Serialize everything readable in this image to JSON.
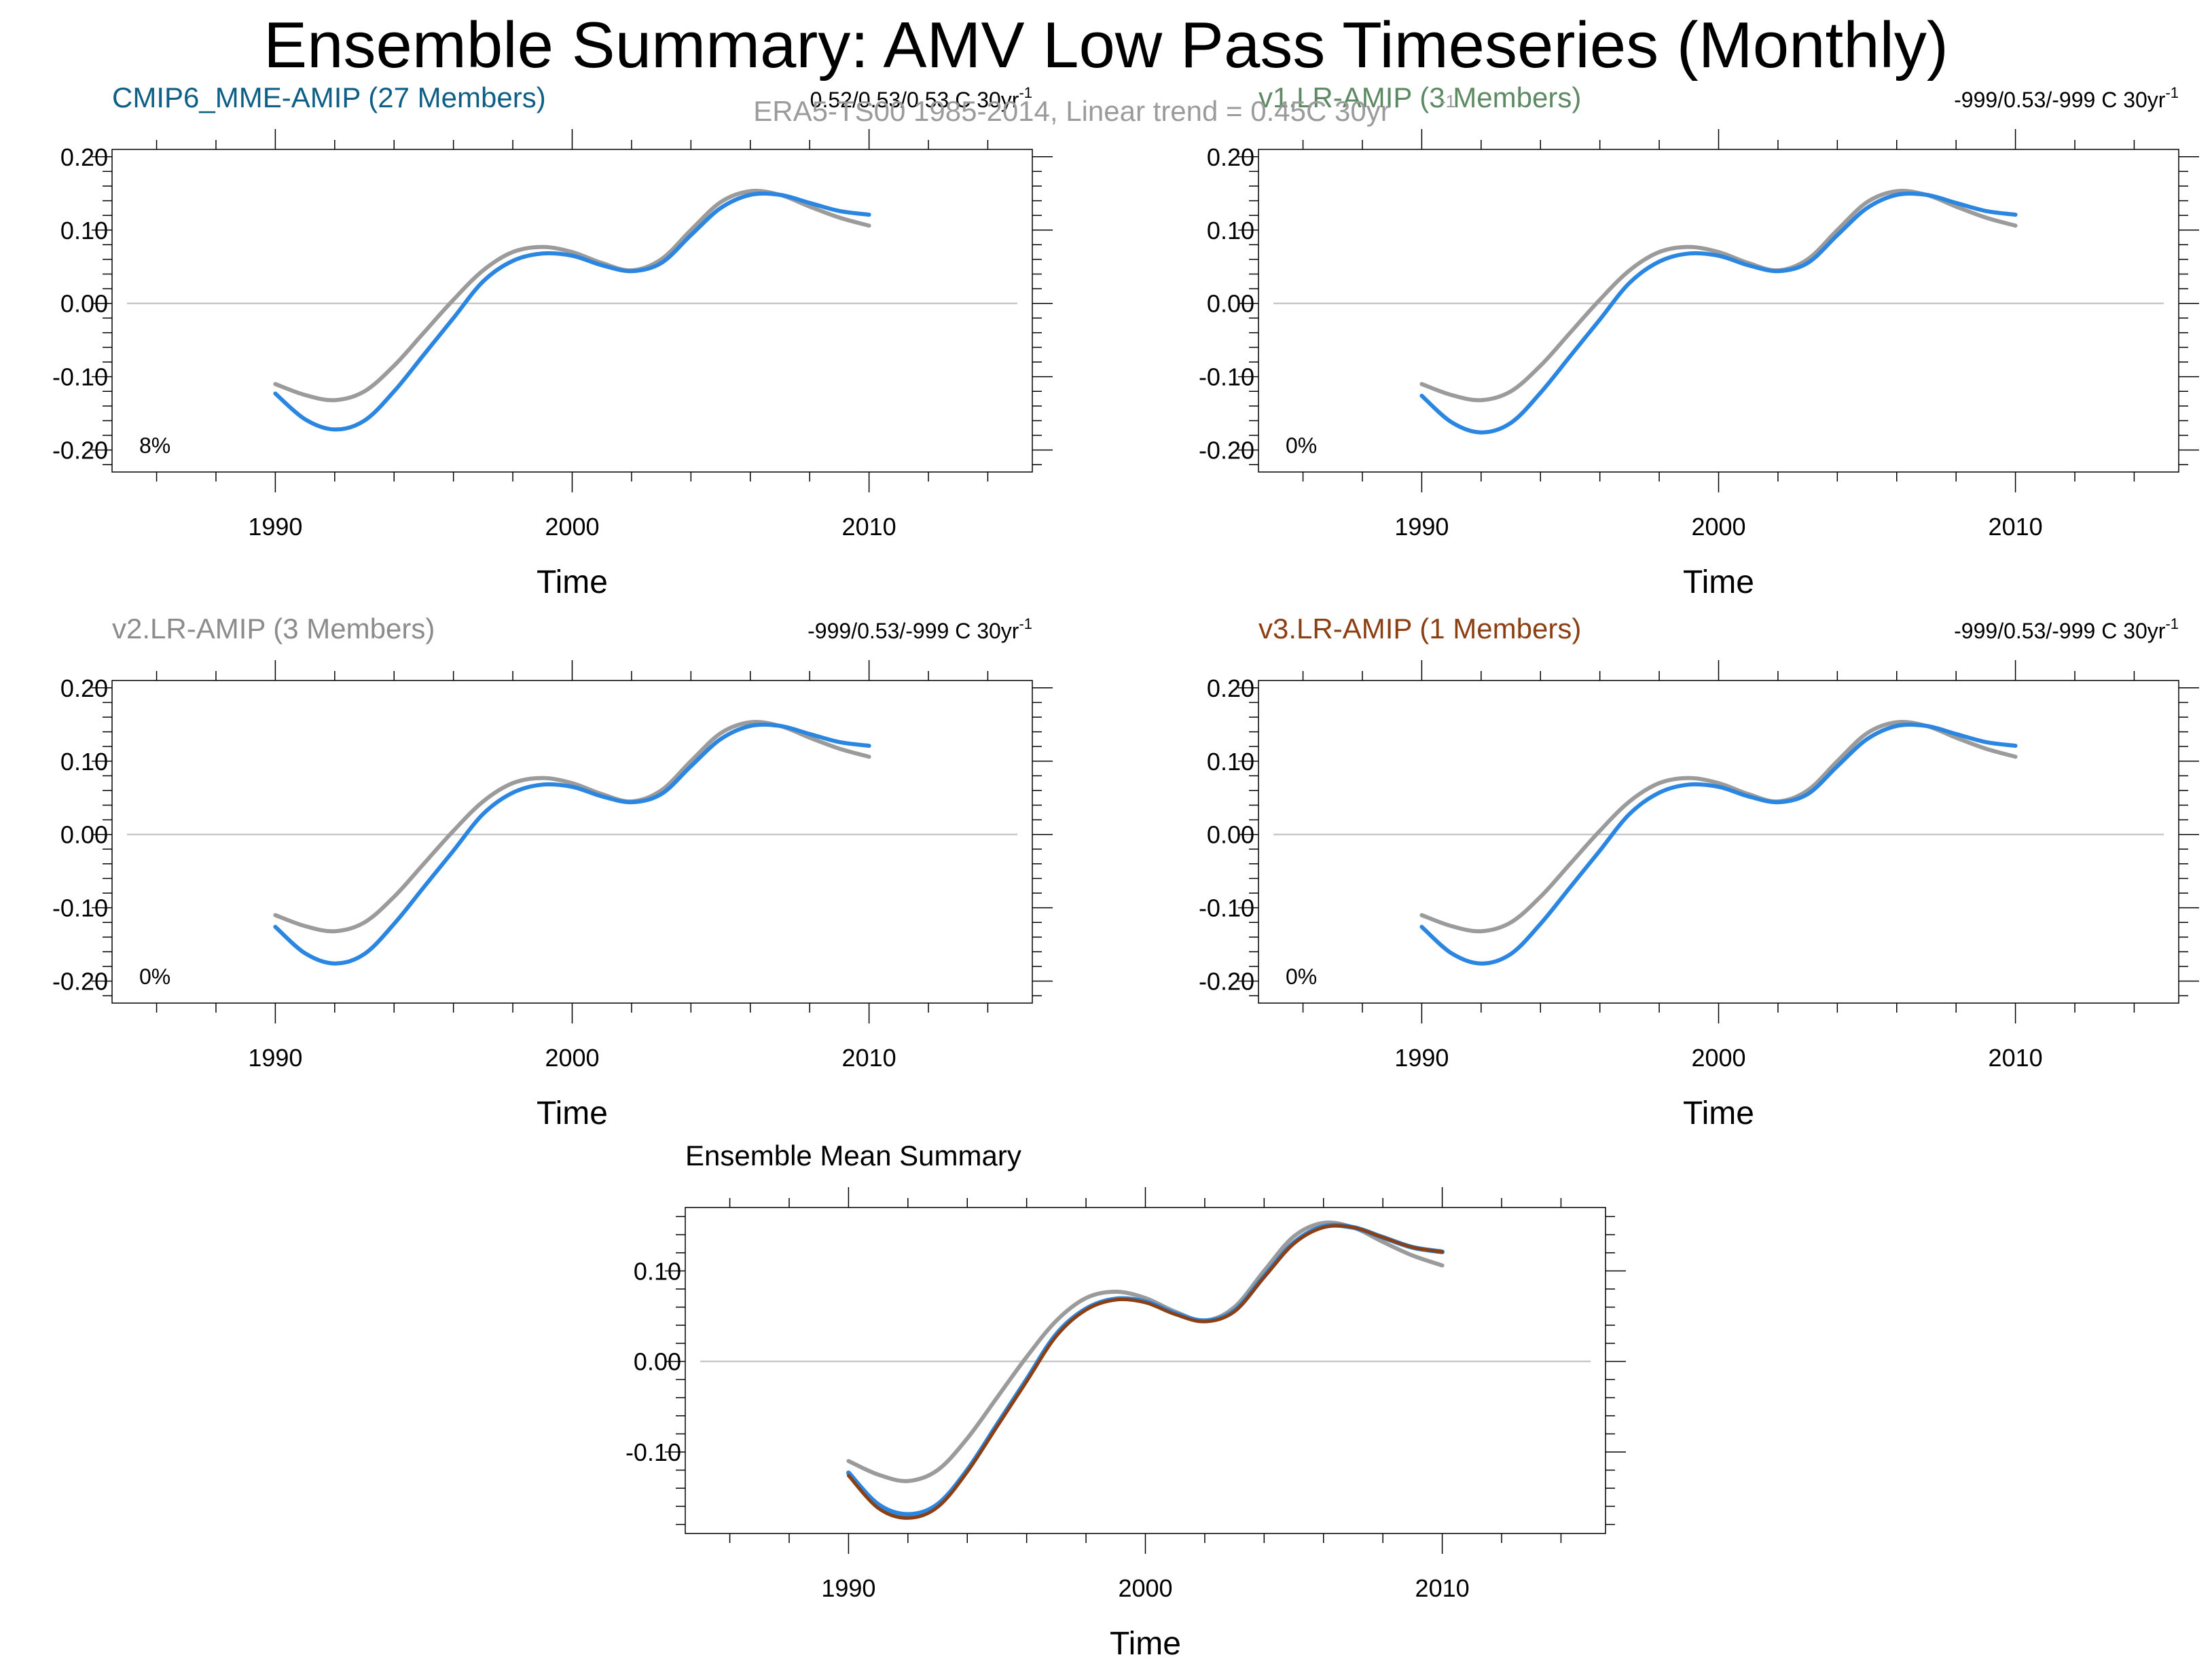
{
  "title": "Ensemble Summary: AMV Low Pass Timeseries (Monthly)",
  "subtitle": "ERA5-TS00 1985-2014, Linear trend = 0.45C 30yr",
  "colors": {
    "observations": "#9b9b9b",
    "model_line": "#2a86e0",
    "title_cmip6": "#0e5f85",
    "title_v1": "#5d8a63",
    "title_v2": "#8c8c8c",
    "title_v3": "#8b3f12",
    "mean_v3": "#8b3f12",
    "zero_line": "#c8c8c8"
  },
  "x_axis": {
    "label": "Time",
    "ticks": [
      "1990",
      "2000",
      "2010"
    ],
    "xlim": [
      1984.5,
      2015.5
    ]
  },
  "chart_data": [
    {
      "type": "line",
      "title": "CMIP6_MME-AMIP (27 Members)",
      "stats": "0.52/0.53/0.53 C 30yr",
      "stats_sup": "-1",
      "percent": "8%",
      "xlabel": "Time",
      "ylabel": "",
      "ylim": [
        -0.23,
        0.21
      ],
      "y_ticks": [
        "0.20",
        "0.10",
        "0.00",
        "-0.10",
        "-0.20"
      ],
      "series": [
        {
          "name": "",
          "role": "observations",
          "x": [
            1990,
            1991,
            1992,
            1993,
            1994,
            1995,
            1996,
            1997,
            1998,
            1999,
            2000,
            2001,
            2002,
            2003,
            2004,
            2005,
            2006,
            2007,
            2008,
            2009,
            2010
          ],
          "values": [
            -0.11,
            -0.125,
            -0.132,
            -0.12,
            -0.085,
            -0.04,
            0.005,
            0.045,
            0.07,
            0.077,
            0.07,
            0.055,
            0.045,
            0.06,
            0.1,
            0.138,
            0.153,
            0.148,
            0.132,
            0.117,
            0.106
          ]
        },
        {
          "name": "",
          "role": "model",
          "x": [
            1990,
            1991,
            1992,
            1993,
            1994,
            1995,
            1996,
            1997,
            1998,
            1999,
            2000,
            2001,
            2002,
            2003,
            2004,
            2005,
            2006,
            2007,
            2008,
            2009,
            2010
          ],
          "values": [
            -0.123,
            -0.158,
            -0.172,
            -0.16,
            -0.12,
            -0.07,
            -0.02,
            0.03,
            0.058,
            0.068,
            0.065,
            0.052,
            0.044,
            0.055,
            0.093,
            0.13,
            0.148,
            0.148,
            0.137,
            0.126,
            0.121
          ]
        }
      ]
    },
    {
      "type": "line",
      "title": "v1.LR-AMIP (3 Members)",
      "stats": "-999/0.53/-999 C 30yr",
      "stats_sup": "-1",
      "percent": "0%",
      "xlabel": "Time",
      "ylabel": "",
      "ylim": [
        -0.23,
        0.21
      ],
      "y_ticks": [
        "0.20",
        "0.10",
        "0.00",
        "-0.10",
        "-0.20"
      ],
      "series": [
        {
          "name": "",
          "role": "observations",
          "x": [
            1990,
            1991,
            1992,
            1993,
            1994,
            1995,
            1996,
            1997,
            1998,
            1999,
            2000,
            2001,
            2002,
            2003,
            2004,
            2005,
            2006,
            2007,
            2008,
            2009,
            2010
          ],
          "values": [
            -0.11,
            -0.125,
            -0.132,
            -0.12,
            -0.085,
            -0.04,
            0.005,
            0.045,
            0.07,
            0.077,
            0.07,
            0.055,
            0.045,
            0.06,
            0.1,
            0.138,
            0.153,
            0.148,
            0.132,
            0.117,
            0.106
          ]
        },
        {
          "name": "",
          "role": "model",
          "x": [
            1990,
            1991,
            1992,
            1993,
            1994,
            1995,
            1996,
            1997,
            1998,
            1999,
            2000,
            2001,
            2002,
            2003,
            2004,
            2005,
            2006,
            2007,
            2008,
            2009,
            2010
          ],
          "values": [
            -0.126,
            -0.162,
            -0.176,
            -0.163,
            -0.122,
            -0.072,
            -0.022,
            0.028,
            0.057,
            0.068,
            0.065,
            0.052,
            0.044,
            0.055,
            0.093,
            0.13,
            0.148,
            0.148,
            0.137,
            0.126,
            0.121
          ]
        }
      ]
    },
    {
      "type": "line",
      "title": "v2.LR-AMIP (3 Members)",
      "stats": "-999/0.53/-999 C 30yr",
      "stats_sup": "-1",
      "percent": "0%",
      "xlabel": "Time",
      "ylabel": "",
      "ylim": [
        -0.23,
        0.21
      ],
      "y_ticks": [
        "0.20",
        "0.10",
        "0.00",
        "-0.10",
        "-0.20"
      ],
      "series": [
        {
          "name": "",
          "role": "observations",
          "x": [
            1990,
            1991,
            1992,
            1993,
            1994,
            1995,
            1996,
            1997,
            1998,
            1999,
            2000,
            2001,
            2002,
            2003,
            2004,
            2005,
            2006,
            2007,
            2008,
            2009,
            2010
          ],
          "values": [
            -0.11,
            -0.125,
            -0.132,
            -0.12,
            -0.085,
            -0.04,
            0.005,
            0.045,
            0.07,
            0.077,
            0.07,
            0.055,
            0.045,
            0.06,
            0.1,
            0.138,
            0.153,
            0.148,
            0.132,
            0.117,
            0.106
          ]
        },
        {
          "name": "",
          "role": "model",
          "x": [
            1990,
            1991,
            1992,
            1993,
            1994,
            1995,
            1996,
            1997,
            1998,
            1999,
            2000,
            2001,
            2002,
            2003,
            2004,
            2005,
            2006,
            2007,
            2008,
            2009,
            2010
          ],
          "values": [
            -0.126,
            -0.162,
            -0.176,
            -0.163,
            -0.122,
            -0.072,
            -0.022,
            0.028,
            0.057,
            0.068,
            0.065,
            0.052,
            0.044,
            0.055,
            0.093,
            0.13,
            0.148,
            0.148,
            0.137,
            0.126,
            0.121
          ]
        }
      ]
    },
    {
      "type": "line",
      "title": "v3.LR-AMIP (1 Members)",
      "stats": "-999/0.53/-999 C 30yr",
      "stats_sup": "-1",
      "percent": "0%",
      "xlabel": "Time",
      "ylabel": "",
      "ylim": [
        -0.23,
        0.21
      ],
      "y_ticks": [
        "0.20",
        "0.10",
        "0.00",
        "-0.10",
        "-0.20"
      ],
      "series": [
        {
          "name": "",
          "role": "observations",
          "x": [
            1990,
            1991,
            1992,
            1993,
            1994,
            1995,
            1996,
            1997,
            1998,
            1999,
            2000,
            2001,
            2002,
            2003,
            2004,
            2005,
            2006,
            2007,
            2008,
            2009,
            2010
          ],
          "values": [
            -0.11,
            -0.125,
            -0.132,
            -0.12,
            -0.085,
            -0.04,
            0.005,
            0.045,
            0.07,
            0.077,
            0.07,
            0.055,
            0.045,
            0.06,
            0.1,
            0.138,
            0.153,
            0.148,
            0.132,
            0.117,
            0.106
          ]
        },
        {
          "name": "",
          "role": "model",
          "x": [
            1990,
            1991,
            1992,
            1993,
            1994,
            1995,
            1996,
            1997,
            1998,
            1999,
            2000,
            2001,
            2002,
            2003,
            2004,
            2005,
            2006,
            2007,
            2008,
            2009,
            2010
          ],
          "values": [
            -0.126,
            -0.162,
            -0.176,
            -0.163,
            -0.122,
            -0.072,
            -0.022,
            0.028,
            0.057,
            0.068,
            0.065,
            0.052,
            0.044,
            0.055,
            0.093,
            0.13,
            0.148,
            0.148,
            0.137,
            0.126,
            0.121
          ]
        }
      ]
    },
    {
      "type": "line",
      "title": "Ensemble Mean Summary",
      "xlabel": "Time",
      "ylabel": "",
      "ylim": [
        -0.19,
        0.17
      ],
      "y_ticks": [
        "0.10",
        "0.00",
        "-0.10"
      ],
      "series": [
        {
          "name": "",
          "role": "observations",
          "x": [
            1990,
            1991,
            1992,
            1993,
            1994,
            1995,
            1996,
            1997,
            1998,
            1999,
            2000,
            2001,
            2002,
            2003,
            2004,
            2005,
            2006,
            2007,
            2008,
            2009,
            2010
          ],
          "values": [
            -0.11,
            -0.125,
            -0.132,
            -0.12,
            -0.085,
            -0.04,
            0.005,
            0.045,
            0.07,
            0.077,
            0.07,
            0.055,
            0.045,
            0.06,
            0.1,
            0.138,
            0.153,
            0.148,
            0.132,
            0.117,
            0.106
          ]
        },
        {
          "name": "",
          "role": "cmip6",
          "x": [
            1990,
            1991,
            1992,
            1993,
            1994,
            1995,
            1996,
            1997,
            1998,
            1999,
            2000,
            2001,
            2002,
            2003,
            2004,
            2005,
            2006,
            2007,
            2008,
            2009,
            2010
          ],
          "values": [
            -0.123,
            -0.158,
            -0.169,
            -0.158,
            -0.12,
            -0.07,
            -0.02,
            0.03,
            0.058,
            0.069,
            0.066,
            0.053,
            0.045,
            0.056,
            0.094,
            0.131,
            0.149,
            0.148,
            0.137,
            0.126,
            0.121
          ]
        },
        {
          "name": "",
          "role": "v3",
          "x": [
            1990,
            1991,
            1992,
            1993,
            1994,
            1995,
            1996,
            1997,
            1998,
            1999,
            2000,
            2001,
            2002,
            2003,
            2004,
            2005,
            2006,
            2007,
            2008,
            2009,
            2010
          ],
          "values": [
            -0.126,
            -0.162,
            -0.173,
            -0.161,
            -0.122,
            -0.072,
            -0.022,
            0.028,
            0.057,
            0.068,
            0.065,
            0.052,
            0.044,
            0.055,
            0.093,
            0.13,
            0.148,
            0.148,
            0.137,
            0.126,
            0.121
          ]
        }
      ]
    }
  ]
}
